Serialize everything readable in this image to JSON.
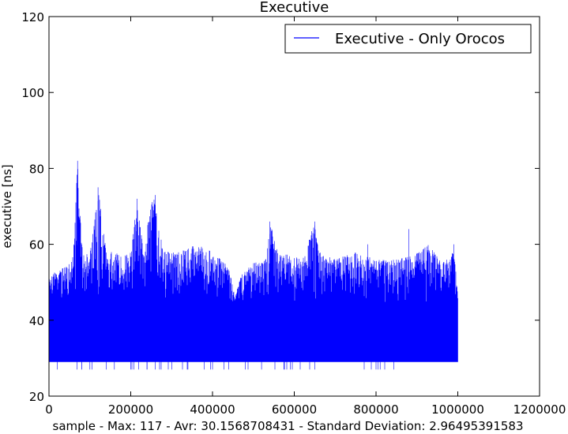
{
  "chart_data": {
    "type": "line",
    "title": "Executive",
    "xlabel": "sample - Max: 117 - Avr: 30.1568708431 - Standard Deviation: 2.96495391583",
    "ylabel": "executive [ns]",
    "xlim": [
      0,
      1200000
    ],
    "ylim": [
      20,
      120
    ],
    "xticks": [
      0,
      200000,
      400000,
      600000,
      800000,
      1000000,
      1200000
    ],
    "xtick_labels": [
      "0",
      "200000",
      "400000",
      "600000",
      "800000",
      "1000000",
      "1200000"
    ],
    "yticks": [
      20,
      40,
      60,
      80,
      100,
      120
    ],
    "ytick_labels": [
      "20",
      "40",
      "60",
      "80",
      "100",
      "120"
    ],
    "grid": false,
    "legend_position": "top-right",
    "series": [
      {
        "name": "Executive - Only Orocos",
        "color": "#0000ff",
        "x_range": [
          0,
          1000000
        ],
        "baseline": 29,
        "envelope_upper": [
          [
            0,
            52
          ],
          [
            20000,
            53
          ],
          [
            40000,
            54
          ],
          [
            60000,
            58
          ],
          [
            70000,
            82
          ],
          [
            80000,
            60
          ],
          [
            100000,
            57
          ],
          [
            120000,
            75
          ],
          [
            140000,
            58
          ],
          [
            160000,
            58
          ],
          [
            180000,
            57
          ],
          [
            200000,
            58
          ],
          [
            215000,
            72
          ],
          [
            230000,
            59
          ],
          [
            255000,
            73
          ],
          [
            280000,
            58
          ],
          [
            320000,
            58
          ],
          [
            360000,
            60
          ],
          [
            400000,
            58
          ],
          [
            440000,
            54
          ],
          [
            455000,
            46
          ],
          [
            470000,
            52
          ],
          [
            500000,
            55
          ],
          [
            530000,
            57
          ],
          [
            540000,
            66
          ],
          [
            560000,
            58
          ],
          [
            600000,
            57
          ],
          [
            620000,
            56
          ],
          [
            650000,
            66
          ],
          [
            660000,
            58
          ],
          [
            700000,
            56
          ],
          [
            750000,
            58
          ],
          [
            800000,
            56
          ],
          [
            850000,
            56
          ],
          [
            890000,
            57
          ],
          [
            930000,
            60
          ],
          [
            960000,
            55
          ],
          [
            990000,
            58
          ],
          [
            1000000,
            48
          ]
        ],
        "envelope_lower_dips": [
          [
            0,
            27
          ],
          [
            20000,
            27
          ],
          [
            80000,
            27
          ],
          [
            100000,
            27
          ],
          [
            140000,
            27
          ],
          [
            160000,
            27
          ],
          [
            200000,
            27
          ],
          [
            240000,
            27
          ],
          [
            260000,
            27
          ],
          [
            300000,
            27
          ],
          [
            340000,
            27
          ],
          [
            380000,
            27
          ],
          [
            400000,
            27
          ],
          [
            440000,
            27
          ],
          [
            480000,
            27
          ],
          [
            520000,
            27
          ],
          [
            590000,
            27
          ],
          [
            650000,
            27
          ],
          [
            805000,
            27
          ],
          [
            810000,
            27
          ]
        ],
        "spikes": [
          [
            70000,
            82
          ],
          [
            120000,
            75
          ],
          [
            215000,
            72
          ],
          [
            260000,
            73
          ],
          [
            540000,
            66
          ],
          [
            650000,
            66
          ],
          [
            780000,
            60
          ],
          [
            880000,
            64
          ],
          [
            990000,
            60
          ]
        ]
      }
    ]
  }
}
